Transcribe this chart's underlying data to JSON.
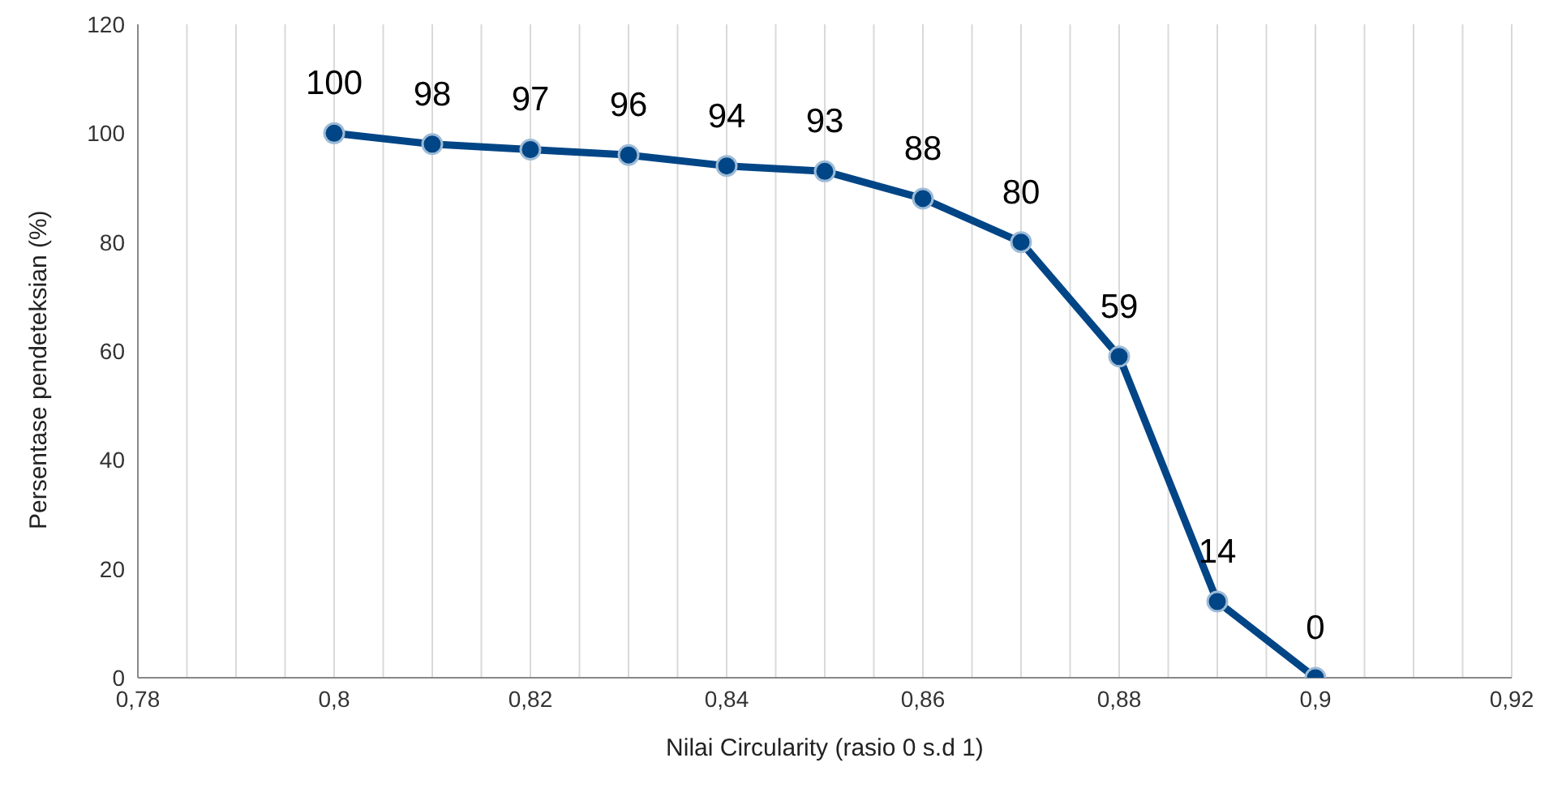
{
  "chart_data": {
    "type": "line",
    "xlabel": "Nilai Circularity (rasio 0 s.d 1)",
    "ylabel": "Persentase pendeteksian (%)",
    "x": [
      0.8,
      0.81,
      0.82,
      0.83,
      0.84,
      0.85,
      0.86,
      0.87,
      0.88,
      0.89,
      0.9
    ],
    "series": [
      {
        "color": "#004586",
        "values": [
          100,
          98,
          97,
          96,
          94,
          93,
          88,
          80,
          59,
          14,
          0
        ]
      }
    ],
    "xlim": [
      0.78,
      0.92
    ],
    "xticks": [
      {
        "value": 0.78,
        "label": "0,78"
      },
      {
        "value": 0.785,
        "label": null
      },
      {
        "value": 0.79,
        "label": null
      },
      {
        "value": 0.795,
        "label": null
      },
      {
        "value": 0.8,
        "label": "0,8"
      },
      {
        "value": 0.805,
        "label": null
      },
      {
        "value": 0.81,
        "label": null
      },
      {
        "value": 0.815,
        "label": null
      },
      {
        "value": 0.82,
        "label": "0,82"
      },
      {
        "value": 0.825,
        "label": null
      },
      {
        "value": 0.83,
        "label": null
      },
      {
        "value": 0.835,
        "label": null
      },
      {
        "value": 0.84,
        "label": "0,84"
      },
      {
        "value": 0.845,
        "label": null
      },
      {
        "value": 0.85,
        "label": null
      },
      {
        "value": 0.855,
        "label": null
      },
      {
        "value": 0.86,
        "label": "0,86"
      },
      {
        "value": 0.865,
        "label": null
      },
      {
        "value": 0.87,
        "label": null
      },
      {
        "value": 0.875,
        "label": null
      },
      {
        "value": 0.88,
        "label": "0,88"
      },
      {
        "value": 0.885,
        "label": null
      },
      {
        "value": 0.89,
        "label": null
      },
      {
        "value": 0.895,
        "label": null
      },
      {
        "value": 0.9,
        "label": "0,9"
      },
      {
        "value": 0.905,
        "label": null
      },
      {
        "value": 0.91,
        "label": null
      },
      {
        "value": 0.915,
        "label": null
      },
      {
        "value": 0.92,
        "label": "0,92"
      }
    ],
    "ylim": [
      0,
      120
    ],
    "yticks": [
      0,
      20,
      40,
      60,
      80,
      100,
      120
    ],
    "grid": "x",
    "marker": "circle",
    "line_style": "solid",
    "data_labels": true
  }
}
